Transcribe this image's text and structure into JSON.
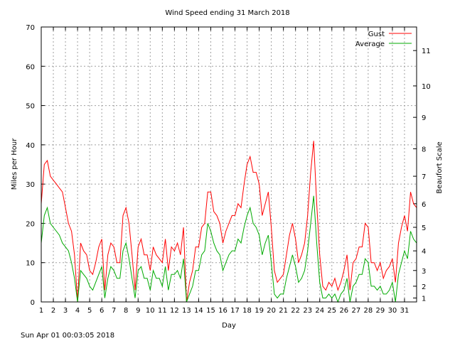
{
  "chart_data": {
    "type": "line",
    "title": "Wind Speed ending 31 March 2018",
    "xlabel": "Day",
    "ylabel": "Miles per Hour",
    "y2label": "Beaufort Scale",
    "xlim": [
      1,
      32
    ],
    "ylim": [
      0,
      70
    ],
    "x_ticks": [
      "1",
      "2",
      "3",
      "4",
      "5",
      "6",
      "7",
      "8",
      "9",
      "10",
      "11",
      "12",
      "13",
      "14",
      "15",
      "16",
      "17",
      "18",
      "19",
      "20",
      "21",
      "22",
      "23",
      "24",
      "25",
      "26",
      "27",
      "28",
      "29",
      "30",
      "31"
    ],
    "y_ticks": [
      "0",
      "10",
      "20",
      "30",
      "40",
      "50",
      "60",
      "70"
    ],
    "beaufort_ticks": [
      {
        "label": "1",
        "mph": 1
      },
      {
        "label": "2",
        "mph": 4
      },
      {
        "label": "3",
        "mph": 8
      },
      {
        "label": "4",
        "mph": 13
      },
      {
        "label": "5",
        "mph": 19
      },
      {
        "label": "6",
        "mph": 25
      },
      {
        "label": "7",
        "mph": 32
      },
      {
        "label": "8",
        "mph": 39
      },
      {
        "label": "9",
        "mph": 47
      },
      {
        "label": "10",
        "mph": 55
      },
      {
        "label": "11",
        "mph": 64
      }
    ],
    "grid": true,
    "legend_position": "top-right",
    "series": [
      {
        "name": "Gust",
        "color": "#ff0000",
        "x": [
          1,
          1.25,
          1.5,
          1.75,
          2,
          2.25,
          2.5,
          2.75,
          3,
          3.25,
          3.5,
          3.75,
          4,
          4.25,
          4.5,
          4.75,
          5,
          5.25,
          5.5,
          5.75,
          6,
          6.25,
          6.5,
          6.75,
          7,
          7.25,
          7.5,
          7.75,
          8,
          8.25,
          8.5,
          8.75,
          9,
          9.25,
          9.5,
          9.75,
          10,
          10.25,
          10.5,
          10.75,
          11,
          11.25,
          11.5,
          11.75,
          12,
          12.25,
          12.5,
          12.75,
          13,
          13.25,
          13.5,
          13.75,
          14,
          14.25,
          14.5,
          14.75,
          15,
          15.25,
          15.5,
          15.75,
          16,
          16.25,
          16.5,
          16.75,
          17,
          17.25,
          17.5,
          17.75,
          18,
          18.25,
          18.5,
          18.75,
          19,
          19.25,
          19.5,
          19.75,
          20,
          20.25,
          20.5,
          20.75,
          21,
          21.25,
          21.5,
          21.75,
          22,
          22.25,
          22.5,
          22.75,
          23,
          23.25,
          23.5,
          23.75,
          24,
          24.25,
          24.5,
          24.75,
          25,
          25.25,
          25.5,
          25.75,
          26,
          26.25,
          26.5,
          26.75,
          27,
          27.25,
          27.5,
          27.75,
          28,
          28.25,
          28.5,
          28.75,
          29,
          29.25,
          29.5,
          29.75,
          30,
          30.25,
          30.5,
          30.75,
          31,
          31.25,
          31.5,
          31.75,
          32
        ],
        "values": [
          25,
          35,
          36,
          32,
          31,
          30,
          29,
          28,
          24,
          20,
          18,
          12,
          0,
          15,
          13,
          12,
          8,
          7,
          10,
          14,
          16,
          3,
          12,
          15,
          14,
          10,
          10,
          22,
          24,
          20,
          12,
          3,
          14,
          16,
          12,
          12,
          8,
          14,
          12,
          11,
          10,
          16,
          8,
          14,
          13,
          15,
          12,
          19,
          0,
          5,
          8,
          14,
          14,
          19,
          20,
          28,
          28,
          23,
          22,
          20,
          15,
          18,
          20,
          22,
          22,
          25,
          24,
          30,
          35,
          37,
          33,
          33,
          30,
          22,
          25,
          28,
          19,
          8,
          5,
          6,
          7,
          12,
          17,
          20,
          16,
          10,
          12,
          15,
          22,
          33,
          41,
          25,
          12,
          4,
          3,
          5,
          4,
          6,
          3,
          5,
          8,
          12,
          3,
          10,
          11,
          14,
          14,
          20,
          19,
          10,
          10,
          8,
          10,
          6,
          8,
          9,
          11,
          5,
          15,
          19,
          22,
          18,
          28,
          25,
          24
        ]
      },
      {
        "name": "Average",
        "color": "#00aa00",
        "x": [
          1,
          1.25,
          1.5,
          1.75,
          2,
          2.25,
          2.5,
          2.75,
          3,
          3.25,
          3.5,
          3.75,
          4,
          4.25,
          4.5,
          4.75,
          5,
          5.25,
          5.5,
          5.75,
          6,
          6.25,
          6.5,
          6.75,
          7,
          7.25,
          7.5,
          7.75,
          8,
          8.25,
          8.5,
          8.75,
          9,
          9.25,
          9.5,
          9.75,
          10,
          10.25,
          10.5,
          10.75,
          11,
          11.25,
          11.5,
          11.75,
          12,
          12.25,
          12.5,
          12.75,
          13,
          13.25,
          13.5,
          13.75,
          14,
          14.25,
          14.5,
          14.75,
          15,
          15.25,
          15.5,
          15.75,
          16,
          16.25,
          16.5,
          16.75,
          17,
          17.25,
          17.5,
          17.75,
          18,
          18.25,
          18.5,
          18.75,
          19,
          19.25,
          19.5,
          19.75,
          20,
          20.25,
          20.5,
          20.75,
          21,
          21.25,
          21.5,
          21.75,
          22,
          22.25,
          22.5,
          22.75,
          23,
          23.25,
          23.5,
          23.75,
          24,
          24.25,
          24.5,
          24.75,
          25,
          25.25,
          25.5,
          25.75,
          26,
          26.25,
          26.5,
          26.75,
          27,
          27.25,
          27.5,
          27.75,
          28,
          28.25,
          28.5,
          28.75,
          29,
          29.25,
          29.5,
          29.75,
          30,
          30.25,
          30.5,
          30.75,
          31,
          31.25,
          31.5,
          31.75,
          32
        ],
        "values": [
          15,
          22,
          24,
          20,
          19,
          18,
          17,
          15,
          14,
          13,
          10,
          6,
          0,
          8,
          7,
          6,
          4,
          3,
          5,
          7,
          9,
          1,
          6,
          9,
          8,
          6,
          6,
          13,
          15,
          11,
          6,
          1,
          8,
          9,
          6,
          6,
          3,
          8,
          6,
          6,
          4,
          9,
          3,
          7,
          7,
          8,
          6,
          11,
          0,
          2,
          4,
          8,
          8,
          12,
          13,
          20,
          18,
          15,
          13,
          12,
          8,
          10,
          12,
          13,
          13,
          16,
          15,
          19,
          22,
          24,
          20,
          19,
          17,
          12,
          15,
          17,
          10,
          2,
          1,
          2,
          2,
          6,
          9,
          12,
          9,
          5,
          6,
          8,
          13,
          20,
          27,
          15,
          5,
          1,
          1,
          2,
          1,
          2,
          0,
          2,
          3,
          6,
          0,
          4,
          5,
          7,
          7,
          11,
          10,
          4,
          4,
          3,
          4,
          2,
          2,
          3,
          5,
          0,
          7,
          10,
          13,
          11,
          18,
          16,
          15
        ]
      }
    ]
  },
  "footer": {
    "timestamp": "Sun Apr 01 00:03:05 2018"
  }
}
